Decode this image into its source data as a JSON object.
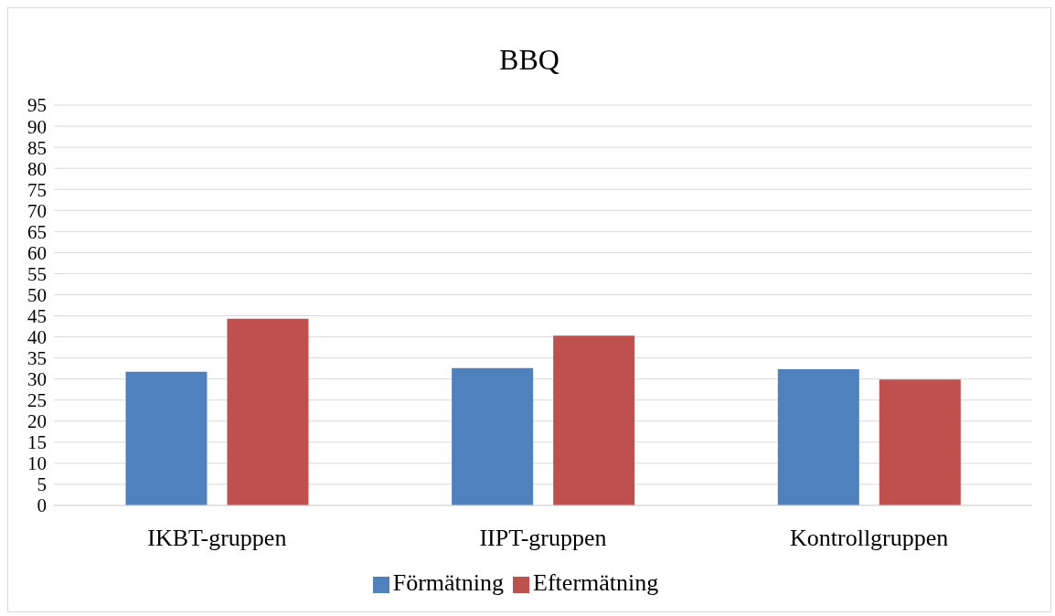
{
  "chart_data": {
    "type": "bar",
    "title": "BBQ",
    "categories": [
      "IKBT-gruppen",
      "IIPT-gruppen",
      "Kontrollgruppen"
    ],
    "series": [
      {
        "name": "Förmätning",
        "color": "#4f81bd",
        "values": [
          31.7,
          32.6,
          32.3
        ]
      },
      {
        "name": "Eftermätning",
        "color": "#c0504d",
        "values": [
          44.3,
          40.3,
          29.9
        ]
      }
    ],
    "ylim": [
      0,
      95
    ],
    "yticks": [
      0,
      5,
      10,
      15,
      20,
      25,
      30,
      35,
      40,
      45,
      50,
      55,
      60,
      65,
      70,
      75,
      80,
      85,
      90,
      95
    ],
    "grid": "y",
    "legend": "bottom"
  }
}
